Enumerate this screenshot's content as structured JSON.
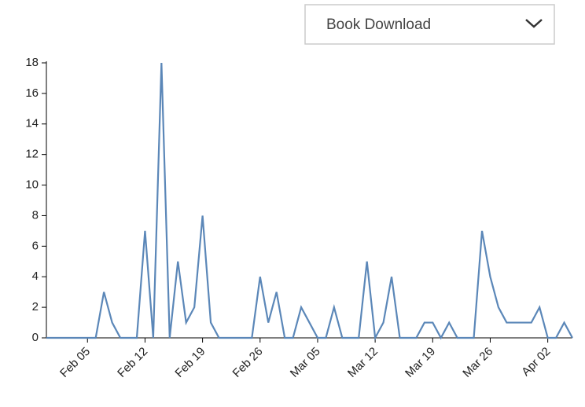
{
  "dropdown": {
    "selected": "Book Download"
  },
  "chart_data": {
    "type": "line",
    "x": [
      "Jan 31",
      "Feb 01",
      "Feb 02",
      "Feb 03",
      "Feb 04",
      "Feb 05",
      "Feb 06",
      "Feb 07",
      "Feb 08",
      "Feb 09",
      "Feb 10",
      "Feb 11",
      "Feb 12",
      "Feb 13",
      "Feb 14",
      "Feb 15",
      "Feb 16",
      "Feb 17",
      "Feb 18",
      "Feb 19",
      "Feb 20",
      "Feb 21",
      "Feb 22",
      "Feb 23",
      "Feb 24",
      "Feb 25",
      "Feb 26",
      "Feb 27",
      "Feb 28",
      "Mar 01",
      "Mar 02",
      "Mar 03",
      "Mar 04",
      "Mar 05",
      "Mar 06",
      "Mar 07",
      "Mar 08",
      "Mar 09",
      "Mar 10",
      "Mar 11",
      "Mar 12",
      "Mar 13",
      "Mar 14",
      "Mar 15",
      "Mar 16",
      "Mar 17",
      "Mar 18",
      "Mar 19",
      "Mar 20",
      "Mar 21",
      "Mar 22",
      "Mar 23",
      "Mar 24",
      "Mar 25",
      "Mar 26",
      "Mar 27",
      "Mar 28",
      "Mar 29",
      "Mar 30",
      "Mar 31",
      "Apr 01",
      "Apr 02",
      "Apr 03",
      "Apr 04",
      "Apr 05"
    ],
    "values": [
      0,
      0,
      0,
      0,
      0,
      0,
      0,
      3,
      1,
      0,
      0,
      0,
      7,
      0,
      18,
      0,
      5,
      1,
      2,
      8,
      1,
      0,
      0,
      0,
      0,
      0,
      4,
      1,
      3,
      0,
      0,
      2,
      1,
      0,
      0,
      2,
      0,
      0,
      0,
      5,
      0,
      1,
      4,
      0,
      0,
      0,
      1,
      1,
      0,
      1,
      0,
      0,
      0,
      7,
      4,
      2,
      1,
      1,
      1,
      1,
      2,
      0,
      0,
      1,
      0
    ],
    "color": "#5b87b8",
    "xlim": [
      "Jan 31",
      "Apr 05"
    ],
    "xticks": [
      "Feb 05",
      "Feb 12",
      "Feb 19",
      "Feb 26",
      "Mar 05",
      "Mar 12",
      "Mar 19",
      "Mar 26",
      "Apr 02"
    ],
    "ylim": [
      0,
      18
    ],
    "yticks": [
      0,
      2,
      4,
      6,
      8,
      10,
      12,
      14,
      16,
      18
    ]
  }
}
